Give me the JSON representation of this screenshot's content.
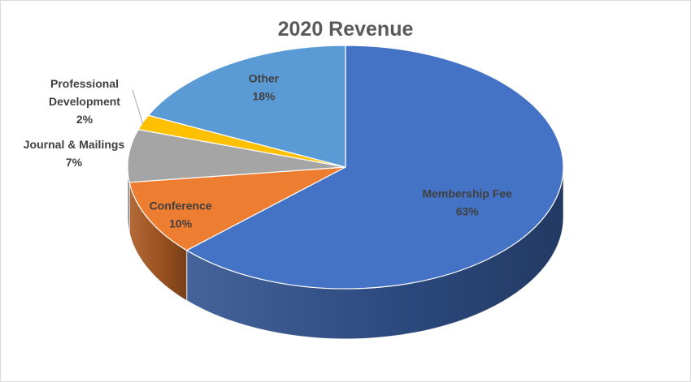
{
  "chart_data": {
    "type": "pie",
    "title": "2020 Revenue",
    "categories": [
      "Membership Fee",
      "Conference",
      "Journal & Mailings",
      "Professional Development",
      "Other"
    ],
    "values": [
      63,
      10,
      7,
      2,
      18
    ],
    "unit": "%",
    "labels": [
      {
        "lines": [
          "Membership Fee"
        ],
        "value": "63%"
      },
      {
        "lines": [
          "Conference"
        ],
        "value": "10%"
      },
      {
        "lines": [
          "Journal & Mailings"
        ],
        "value": "7%"
      },
      {
        "lines": [
          "Professional",
          "Development"
        ],
        "value": "2%"
      },
      {
        "lines": [
          "Other"
        ],
        "value": "18%"
      }
    ],
    "colors": [
      "#4472C4",
      "#ED7D31",
      "#A5A5A5",
      "#FFC000",
      "#5B9BD5"
    ],
    "style": "3d",
    "legend": "none"
  }
}
